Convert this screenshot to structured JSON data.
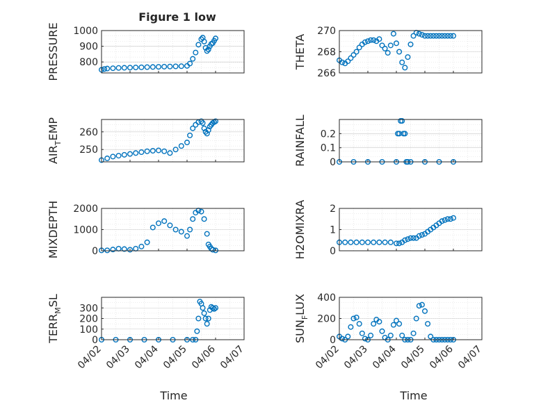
{
  "figure": {
    "title": "Figure 1 low",
    "xlabel": "Time",
    "x_tick_labels": [
      "04/02",
      "04/03",
      "04/04",
      "04/05",
      "04/06",
      "04/07"
    ],
    "marker_color": "#0072BD"
  },
  "chart_data": [
    {
      "type": "scatter",
      "title": "Figure 1 low",
      "ylabel": "PRESSURE",
      "xlim": [
        0,
        5
      ],
      "ylim": [
        730,
        1000
      ],
      "yticks": [
        800,
        900,
        1000
      ],
      "x": [
        0.0,
        0.1,
        0.2,
        0.4,
        0.6,
        0.8,
        1.0,
        1.2,
        1.4,
        1.6,
        1.8,
        2.0,
        2.2,
        2.4,
        2.6,
        2.8,
        3.0,
        3.1,
        3.2,
        3.3,
        3.4,
        3.5,
        3.55,
        3.6,
        3.65,
        3.7,
        3.75,
        3.8,
        3.85,
        3.9,
        3.95,
        4.0
      ],
      "y": [
        750,
        755,
        758,
        760,
        762,
        763,
        764,
        765,
        766,
        767,
        768,
        769,
        770,
        771,
        772,
        773,
        775,
        790,
        820,
        860,
        910,
        945,
        955,
        930,
        890,
        870,
        880,
        900,
        915,
        920,
        935,
        950
      ]
    },
    {
      "type": "scatter",
      "ylabel": "THETA",
      "xlim": [
        0,
        5
      ],
      "ylim": [
        266,
        270
      ],
      "yticks": [
        266,
        268,
        270
      ],
      "x": [
        0.0,
        0.1,
        0.2,
        0.3,
        0.4,
        0.5,
        0.6,
        0.7,
        0.8,
        0.9,
        1.0,
        1.1,
        1.2,
        1.3,
        1.4,
        1.5,
        1.6,
        1.7,
        1.8,
        1.9,
        2.0,
        2.1,
        2.2,
        2.3,
        2.4,
        2.5,
        2.6,
        2.7,
        2.8,
        2.9,
        3.0,
        3.1,
        3.2,
        3.3,
        3.4,
        3.5,
        3.6,
        3.7,
        3.8,
        3.9,
        4.0
      ],
      "y": [
        267.2,
        267.0,
        266.9,
        267.1,
        267.4,
        267.7,
        268.0,
        268.4,
        268.7,
        268.9,
        269.0,
        269.1,
        269.1,
        269.0,
        269.2,
        268.6,
        268.3,
        267.9,
        268.6,
        269.7,
        268.8,
        268.0,
        267.0,
        266.5,
        267.5,
        268.7,
        269.5,
        269.8,
        269.7,
        269.6,
        269.5,
        269.5,
        269.5,
        269.5,
        269.5,
        269.5,
        269.5,
        269.5,
        269.5,
        269.5,
        269.5
      ]
    },
    {
      "type": "scatter",
      "ylabel": "AIR_TEMP",
      "xlim": [
        0,
        5
      ],
      "ylim": [
        243,
        267
      ],
      "yticks": [
        250,
        260
      ],
      "x": [
        0.0,
        0.2,
        0.4,
        0.6,
        0.8,
        1.0,
        1.2,
        1.4,
        1.6,
        1.8,
        2.0,
        2.2,
        2.4,
        2.6,
        2.8,
        3.0,
        3.1,
        3.2,
        3.3,
        3.4,
        3.5,
        3.55,
        3.6,
        3.65,
        3.7,
        3.75,
        3.8,
        3.85,
        3.9,
        3.95,
        4.0
      ],
      "y": [
        244,
        245,
        246,
        246.5,
        247,
        247.5,
        248,
        248.5,
        249,
        249.3,
        249.5,
        249,
        248,
        250,
        252,
        254,
        258,
        262,
        264,
        265.5,
        266,
        265,
        262,
        260,
        259,
        261,
        263,
        264,
        265,
        265.5,
        266
      ]
    },
    {
      "type": "scatter",
      "ylabel": "RAINFALL",
      "xlim": [
        0,
        5
      ],
      "ylim": [
        0,
        0.3
      ],
      "yticks": [
        0,
        0.1,
        0.2
      ],
      "x": [
        0.0,
        0.5,
        1.0,
        1.5,
        2.0,
        2.05,
        2.1,
        2.15,
        2.2,
        2.25,
        2.3,
        2.35,
        2.4,
        2.5,
        3.0,
        3.5,
        4.0
      ],
      "y": [
        0,
        0,
        0,
        0,
        0,
        0.2,
        0.2,
        0.29,
        0.29,
        0.2,
        0.2,
        0,
        0,
        0,
        0,
        0,
        0
      ]
    },
    {
      "type": "scatter",
      "ylabel": "MIXDEPTH",
      "xlim": [
        0,
        5
      ],
      "ylim": [
        0,
        2000
      ],
      "yticks": [
        0,
        1000,
        2000
      ],
      "x": [
        0.0,
        0.2,
        0.4,
        0.6,
        0.8,
        1.0,
        1.2,
        1.4,
        1.6,
        1.8,
        2.0,
        2.2,
        2.4,
        2.6,
        2.8,
        3.0,
        3.1,
        3.2,
        3.3,
        3.4,
        3.5,
        3.6,
        3.7,
        3.75,
        3.8,
        3.85,
        3.9,
        4.0
      ],
      "y": [
        20,
        20,
        60,
        100,
        80,
        50,
        100,
        200,
        400,
        1100,
        1300,
        1400,
        1200,
        1000,
        900,
        700,
        1000,
        1500,
        1800,
        1900,
        1850,
        1500,
        800,
        300,
        200,
        100,
        50,
        20
      ]
    },
    {
      "type": "scatter",
      "ylabel": "H2OMIXRA",
      "xlim": [
        0,
        5
      ],
      "ylim": [
        0,
        2
      ],
      "yticks": [
        0,
        1,
        2
      ],
      "x": [
        0.0,
        0.2,
        0.4,
        0.6,
        0.8,
        1.0,
        1.2,
        1.4,
        1.6,
        1.8,
        2.0,
        2.1,
        2.2,
        2.3,
        2.4,
        2.5,
        2.6,
        2.7,
        2.8,
        2.9,
        3.0,
        3.1,
        3.2,
        3.3,
        3.4,
        3.5,
        3.6,
        3.7,
        3.8,
        3.9,
        4.0
      ],
      "y": [
        0.4,
        0.4,
        0.4,
        0.4,
        0.4,
        0.4,
        0.4,
        0.4,
        0.4,
        0.4,
        0.35,
        0.35,
        0.4,
        0.5,
        0.55,
        0.6,
        0.6,
        0.6,
        0.7,
        0.75,
        0.8,
        0.9,
        1.0,
        1.1,
        1.2,
        1.3,
        1.4,
        1.45,
        1.5,
        1.5,
        1.55
      ]
    },
    {
      "type": "scatter",
      "ylabel": "TERR_MSL",
      "xlim": [
        0,
        5
      ],
      "ylim": [
        0,
        400
      ],
      "yticks": [
        0,
        100,
        200,
        300
      ],
      "x": [
        0.0,
        0.5,
        1.0,
        1.5,
        2.0,
        2.5,
        3.0,
        3.2,
        3.3,
        3.35,
        3.4,
        3.45,
        3.5,
        3.55,
        3.6,
        3.65,
        3.7,
        3.75,
        3.8,
        3.85,
        3.9,
        3.95,
        4.0
      ],
      "y": [
        0,
        0,
        0,
        0,
        0,
        0,
        0,
        0,
        0,
        80,
        200,
        360,
        340,
        300,
        250,
        200,
        150,
        200,
        280,
        310,
        300,
        290,
        300
      ]
    },
    {
      "type": "scatter",
      "ylabel": "SUN_FLUX",
      "xlim": [
        0,
        5
      ],
      "ylim": [
        0,
        400
      ],
      "yticks": [
        0,
        200,
        400
      ],
      "x": [
        0.0,
        0.1,
        0.2,
        0.3,
        0.4,
        0.5,
        0.6,
        0.7,
        0.8,
        0.9,
        1.0,
        1.1,
        1.2,
        1.3,
        1.4,
        1.5,
        1.6,
        1.7,
        1.8,
        1.9,
        2.0,
        2.1,
        2.2,
        2.3,
        2.4,
        2.5,
        2.6,
        2.7,
        2.8,
        2.9,
        3.0,
        3.1,
        3.2,
        3.3,
        3.4,
        3.5,
        3.6,
        3.7,
        3.8,
        3.9,
        4.0
      ],
      "y": [
        30,
        10,
        0,
        30,
        120,
        200,
        210,
        150,
        60,
        10,
        0,
        40,
        150,
        190,
        170,
        80,
        20,
        0,
        40,
        140,
        180,
        150,
        40,
        0,
        0,
        0,
        60,
        200,
        320,
        330,
        270,
        150,
        30,
        0,
        0,
        0,
        0,
        0,
        0,
        0,
        0
      ]
    }
  ]
}
